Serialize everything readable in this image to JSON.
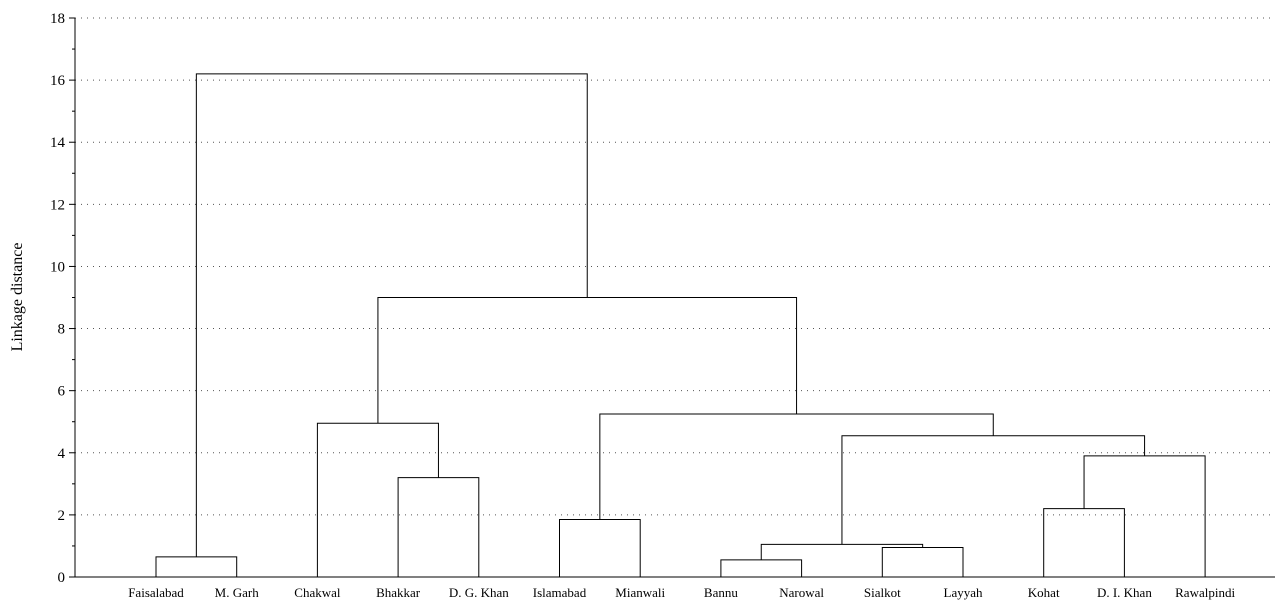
{
  "chart_data": {
    "type": "dendrogram",
    "title": "",
    "xlabel": "",
    "ylabel": "Linkage distance",
    "ylim": [
      0,
      18
    ],
    "yticks": [
      0,
      2,
      4,
      6,
      8,
      10,
      12,
      14,
      16,
      18
    ],
    "grid": "horizontal dotted",
    "leaves": [
      "Faisalabad",
      "M. Garh",
      "Chakwal",
      "Bhakkar",
      "D. G. Khan",
      "Islamabad",
      "Mianwali",
      "Bannu",
      "Narowal",
      "Sialkot",
      "Layyah",
      "Kohat",
      "D. I. Khan",
      "Rawalpindi"
    ],
    "merges": [
      {
        "id": "m1",
        "left": "Faisalabad",
        "right": "M. Garh",
        "height": 0.65
      },
      {
        "id": "m2",
        "left": "Bhakkar",
        "right": "D. G. Khan",
        "height": 3.2
      },
      {
        "id": "m3",
        "left": "Chakwal",
        "right": "m2",
        "height": 4.95
      },
      {
        "id": "m4",
        "left": "Islamabad",
        "right": "Mianwali",
        "height": 1.85
      },
      {
        "id": "m5",
        "left": "Bannu",
        "right": "Narowal",
        "height": 0.55
      },
      {
        "id": "m6",
        "left": "Sialkot",
        "right": "Layyah",
        "height": 0.95
      },
      {
        "id": "m7",
        "left": "m5",
        "right": "m6",
        "height": 1.05
      },
      {
        "id": "m8",
        "left": "Kohat",
        "right": "D. I. Khan",
        "height": 2.2
      },
      {
        "id": "m9",
        "left": "m8",
        "right": "Rawalpindi",
        "height": 3.9
      },
      {
        "id": "m10",
        "left": "m7",
        "right": "m9",
        "height": 4.55
      },
      {
        "id": "m11",
        "left": "m4",
        "right": "m10",
        "height": 5.25
      },
      {
        "id": "m12",
        "left": "m3",
        "right": "m11",
        "height": 9.0
      },
      {
        "id": "m13",
        "left": "m1",
        "right": "m12",
        "height": 16.2
      }
    ]
  }
}
